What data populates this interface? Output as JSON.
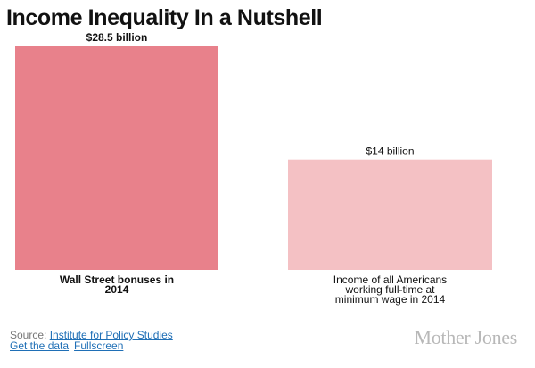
{
  "chart_data": {
    "type": "bar",
    "title": "Income Inequality In a Nutshell",
    "ylim": [
      0,
      28.5
    ],
    "grid": false,
    "legend": "none",
    "bars": [
      {
        "label_lines": [
          "Wall Street bonuses in",
          "2014"
        ],
        "value": 28.5,
        "value_label": "$28.5 billion",
        "color": "#e8818b",
        "label_bold": true
      },
      {
        "label_lines": [
          "Income of all Americans",
          "working full-time at",
          "minimum wage in 2014"
        ],
        "value": 14,
        "value_label": "$14 billion",
        "color": "#f4c1c4",
        "label_bold": false
      }
    ]
  },
  "footer": {
    "source_prefix": "Source: ",
    "source_link": "Institute for Policy Studies",
    "get_data_link": "Get the data",
    "fullscreen_link": "Fullscreen"
  },
  "brand": {
    "name": "Mother Jones"
  }
}
